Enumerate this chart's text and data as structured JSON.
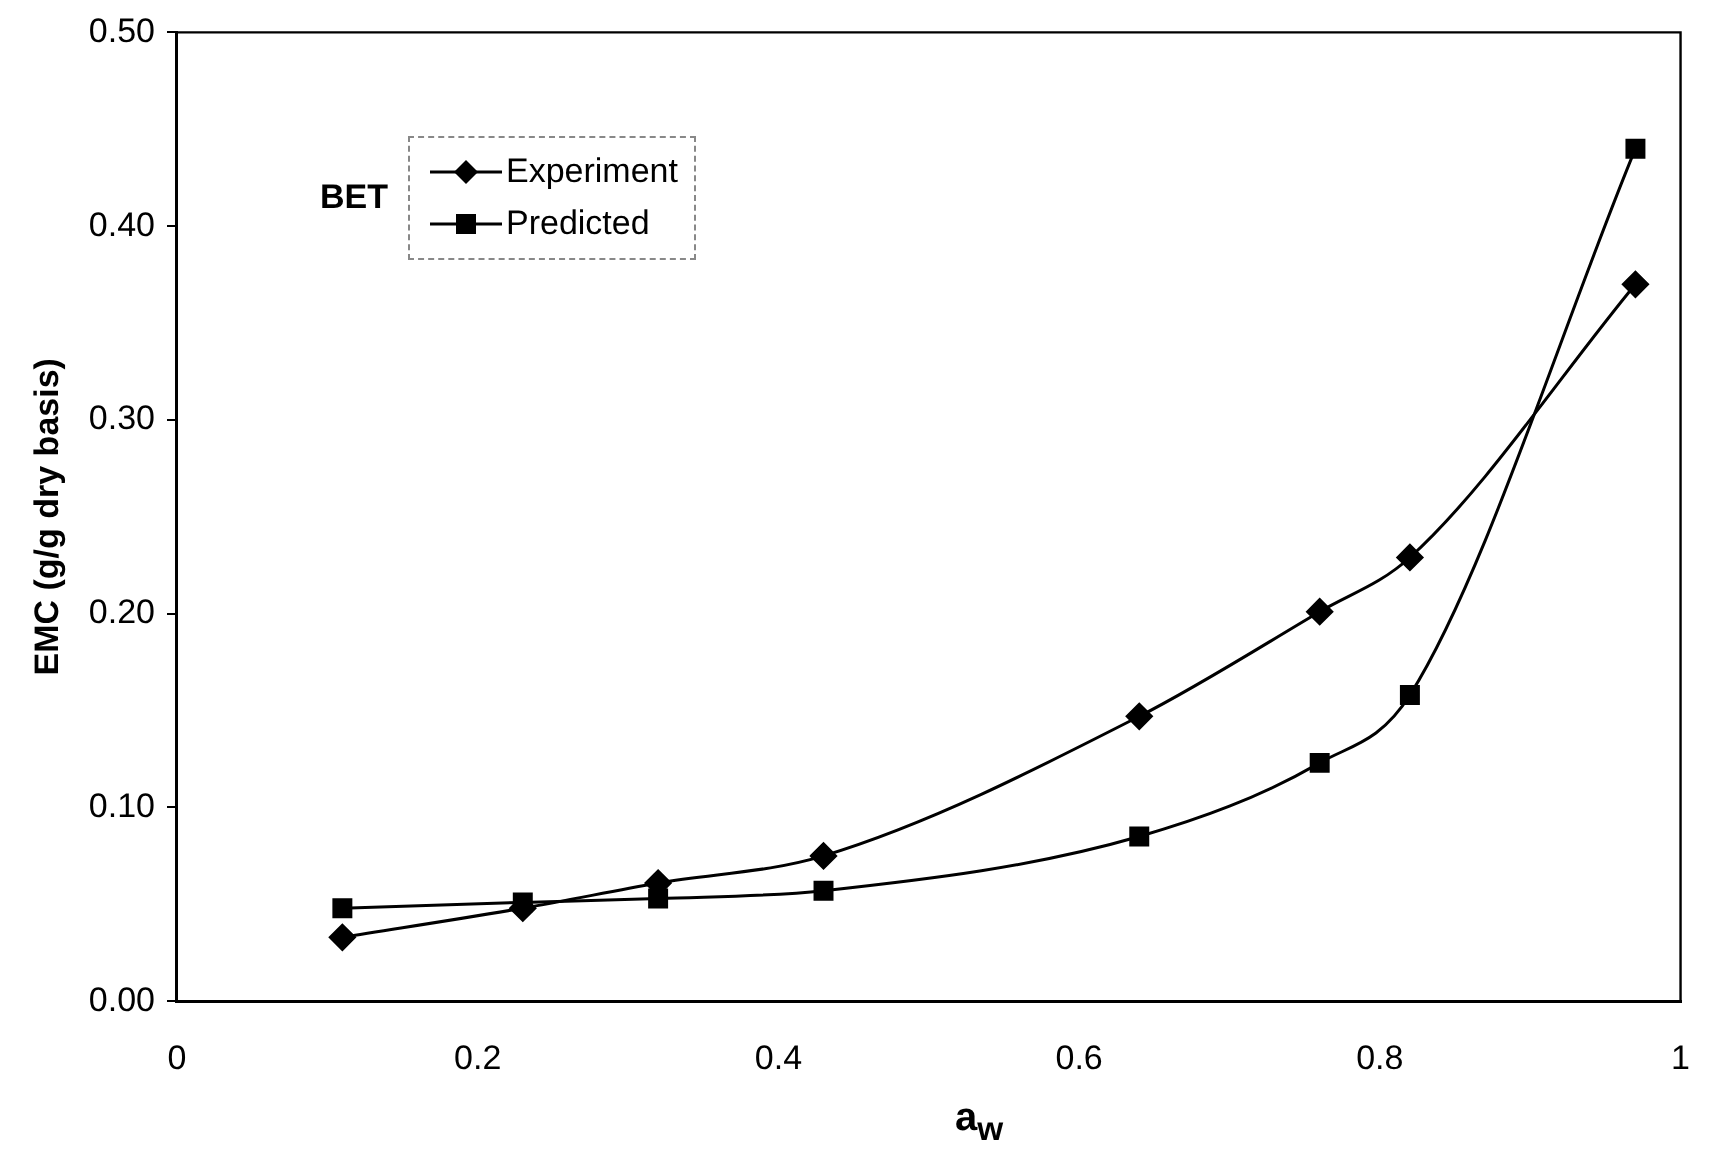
{
  "chart_data": {
    "type": "line",
    "xlabel": "a$_{w}$",
    "ylabel": "EMC (g/g dry basis)",
    "legend_title": "BET",
    "legend": "top left",
    "grid": false,
    "x": [
      0.11,
      0.23,
      0.32,
      0.43,
      0.64,
      0.76,
      0.82,
      0.97
    ],
    "series": [
      {
        "name": "Experiment",
        "color": "#000000",
        "marker": "diamond",
        "values": [
          0.033,
          0.048,
          0.061,
          0.075,
          0.147,
          0.201,
          0.229,
          0.37
        ]
      },
      {
        "name": "Predicted",
        "color": "#000000",
        "marker": "square",
        "values": [
          0.048,
          0.051,
          0.053,
          0.057,
          0.085,
          0.123,
          0.158,
          0.44
        ]
      }
    ],
    "xlim": [
      0,
      1
    ],
    "xticks": [
      0,
      0.2,
      0.4,
      0.6,
      0.8,
      1
    ],
    "ylim": [
      0,
      0.5
    ],
    "yticks": [
      {
        "value": 0,
        "label": "0.00"
      },
      {
        "value": 0.1,
        "label": "0.10"
      },
      {
        "value": 0.2,
        "label": "0.20"
      },
      {
        "value": 0.3,
        "label": "0.30"
      },
      {
        "value": 0.4,
        "label": "0.40"
      },
      {
        "value": 0.5,
        "label": "0.50"
      }
    ]
  }
}
